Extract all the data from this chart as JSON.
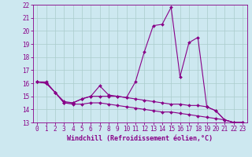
{
  "title": "",
  "xlabel": "Windchill (Refroidissement éolien,°C)",
  "background_color": "#cde8f0",
  "line_color": "#880088",
  "grid_color": "#aacccc",
  "x": [
    0,
    1,
    2,
    3,
    4,
    5,
    6,
    7,
    8,
    9,
    10,
    11,
    12,
    13,
    14,
    15,
    16,
    17,
    18,
    19,
    20,
    21,
    22,
    23
  ],
  "line1": [
    16.1,
    16.1,
    15.3,
    14.5,
    14.5,
    14.8,
    15.0,
    15.8,
    15.1,
    15.0,
    14.9,
    16.1,
    18.4,
    20.4,
    20.5,
    21.8,
    16.5,
    19.1,
    19.5,
    14.2,
    13.9,
    13.2,
    13.0,
    13.0
  ],
  "line2": [
    16.1,
    16.0,
    15.3,
    14.6,
    14.5,
    14.8,
    15.0,
    15.0,
    15.0,
    15.0,
    14.9,
    14.8,
    14.7,
    14.6,
    14.5,
    14.4,
    14.4,
    14.3,
    14.3,
    14.2,
    13.9,
    13.2,
    13.0,
    13.0
  ],
  "line3": [
    16.1,
    16.0,
    15.3,
    14.5,
    14.4,
    14.4,
    14.5,
    14.5,
    14.4,
    14.3,
    14.2,
    14.1,
    14.0,
    13.9,
    13.8,
    13.8,
    13.7,
    13.6,
    13.5,
    13.4,
    13.3,
    13.2,
    13.0,
    13.0
  ],
  "ylim": [
    13,
    22
  ],
  "xlim": [
    -0.5,
    23.5
  ],
  "yticks": [
    13,
    14,
    15,
    16,
    17,
    18,
    19,
    20,
    21,
    22
  ],
  "xticks": [
    0,
    1,
    2,
    3,
    4,
    5,
    6,
    7,
    8,
    9,
    10,
    11,
    12,
    13,
    14,
    15,
    16,
    17,
    18,
    19,
    20,
    21,
    22,
    23
  ],
  "fontsize": 5.5,
  "xlabel_fontsize": 6.0,
  "markersize": 2.0,
  "linewidth": 0.8
}
